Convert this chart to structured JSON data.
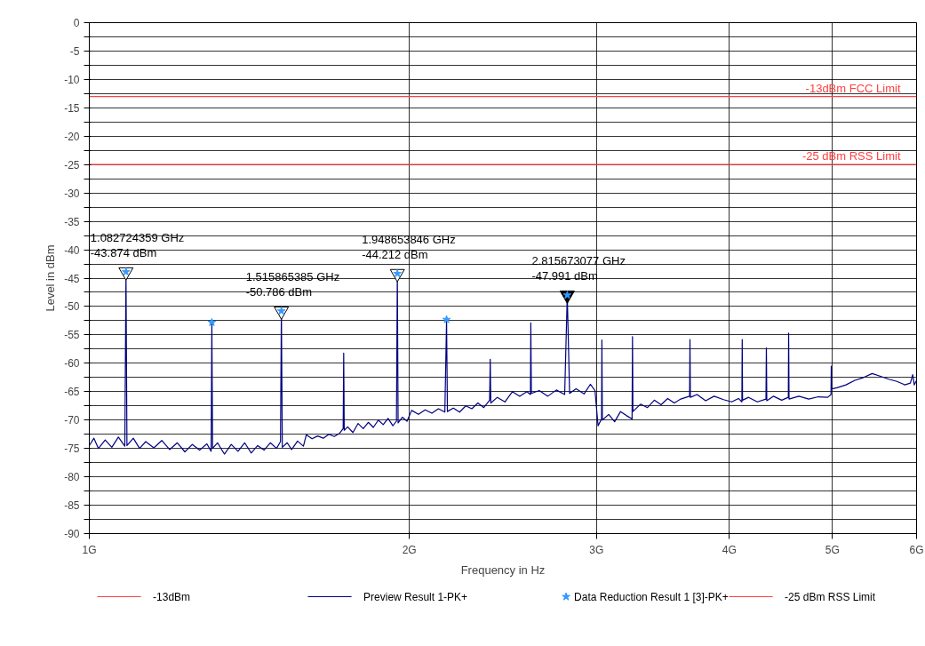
{
  "chart_data": {
    "type": "line",
    "xlabel": "Frequency in Hz",
    "ylabel": "Level in dBm",
    "log": "x",
    "grid": true,
    "legend": "bottom",
    "xlim": [
      1,
      6
    ],
    "ylim": [
      -90,
      0
    ],
    "xticks": [
      {
        "value": 1,
        "label": "1G"
      },
      {
        "value": 2,
        "label": "2G"
      },
      {
        "value": 3,
        "label": "3G"
      },
      {
        "value": 4,
        "label": "4G"
      },
      {
        "value": 5,
        "label": "5G"
      },
      {
        "value": 6,
        "label": "6G"
      }
    ],
    "yticks": [
      0,
      {
        "value": -2.5,
        "label": null
      },
      -5,
      {
        "value": -7.5,
        "label": null
      },
      -10,
      {
        "value": -12.5,
        "label": null
      },
      -15,
      {
        "value": -17.5,
        "label": null
      },
      -20,
      {
        "value": -22.5,
        "label": null
      },
      -25,
      {
        "value": -27.5,
        "label": null
      },
      -30,
      {
        "value": -32.5,
        "label": null
      },
      -35,
      {
        "value": -37.5,
        "label": null
      },
      -40,
      {
        "value": -42.5,
        "label": null
      },
      -45,
      {
        "value": -47.5,
        "label": null
      },
      -50,
      {
        "value": -52.5,
        "label": null
      },
      -55,
      {
        "value": -57.5,
        "label": null
      },
      -60,
      {
        "value": -62.5,
        "label": null
      },
      -65,
      {
        "value": -67.5,
        "label": null
      },
      -70,
      {
        "value": -72.5,
        "label": null
      },
      -75,
      {
        "value": -77.5,
        "label": null
      },
      -80,
      {
        "value": -82.5,
        "label": null
      },
      -85,
      {
        "value": -87.5,
        "label": null
      },
      -90
    ],
    "series": [
      {
        "name": "-13dBm",
        "type": "line",
        "color": "#ff4040",
        "x": [
          1,
          6
        ],
        "values": [
          -13,
          -13
        ]
      },
      {
        "name": "Preview Result 1-PK+",
        "color": "#000080",
        "x": [
          1.0,
          1.01,
          1.02,
          1.035,
          1.05,
          1.065,
          1.08,
          1.0827,
          1.085,
          1.1,
          1.115,
          1.13,
          1.15,
          1.17,
          1.19,
          1.21,
          1.23,
          1.25,
          1.27,
          1.29,
          1.302,
          1.304,
          1.306,
          1.32,
          1.34,
          1.36,
          1.38,
          1.4,
          1.42,
          1.44,
          1.46,
          1.48,
          1.5,
          1.513,
          1.5159,
          1.519,
          1.535,
          1.55,
          1.57,
          1.59,
          1.6,
          1.62,
          1.64,
          1.66,
          1.68,
          1.7,
          1.72,
          1.733,
          1.735,
          1.737,
          1.75,
          1.77,
          1.79,
          1.81,
          1.83,
          1.85,
          1.87,
          1.89,
          1.91,
          1.93,
          1.945,
          1.9487,
          1.952,
          1.97,
          1.99,
          2.01,
          2.04,
          2.07,
          2.1,
          2.13,
          2.16,
          2.168,
          2.172,
          2.2,
          2.23,
          2.26,
          2.29,
          2.32,
          2.35,
          2.38,
          2.383,
          2.386,
          2.42,
          2.46,
          2.5,
          2.54,
          2.58,
          2.6,
          2.602,
          2.605,
          2.65,
          2.7,
          2.75,
          2.8,
          2.8157,
          2.83,
          2.87,
          2.92,
          2.96,
          2.99,
          3.01,
          3.033,
          3.035,
          3.038,
          3.08,
          3.12,
          3.16,
          3.2,
          3.24,
          3.243,
          3.246,
          3.3,
          3.35,
          3.4,
          3.45,
          3.5,
          3.55,
          3.6,
          3.67,
          3.673,
          3.676,
          3.73,
          3.8,
          3.87,
          3.95,
          4.02,
          4.08,
          4.11,
          4.113,
          4.116,
          4.17,
          4.25,
          4.33,
          4.334,
          4.338,
          4.4,
          4.48,
          4.545,
          4.548,
          4.552,
          4.65,
          4.75,
          4.85,
          4.95,
          4.985,
          4.988,
          4.992,
          5.05,
          5.15,
          5.25,
          5.35,
          5.45,
          5.55,
          5.65,
          5.75,
          5.85,
          5.92,
          5.95,
          5.97,
          6.0
        ],
        "values": [
          -74.5,
          -73.2,
          -75.0,
          -73.5,
          -74.8,
          -73.0,
          -74.6,
          -43.9,
          -74.5,
          -73.2,
          -75.0,
          -73.8,
          -74.9,
          -73.6,
          -75.2,
          -74.0,
          -75.6,
          -74.3,
          -75.3,
          -74.2,
          -75.5,
          -52.8,
          -75.0,
          -74.0,
          -76.0,
          -74.3,
          -75.5,
          -74.0,
          -75.8,
          -74.5,
          -75.3,
          -74.0,
          -75.0,
          -73.8,
          -50.8,
          -74.8,
          -74.0,
          -75.2,
          -73.7,
          -74.6,
          -72.6,
          -73.3,
          -72.8,
          -73.2,
          -72.5,
          -72.9,
          -72.3,
          -71.5,
          -58.2,
          -71.8,
          -71.2,
          -72.2,
          -70.6,
          -71.5,
          -70.4,
          -71.3,
          -70.0,
          -70.8,
          -69.7,
          -71.0,
          -70.2,
          -44.2,
          -70.5,
          -69.5,
          -70.2,
          -68.3,
          -69.0,
          -68.2,
          -68.8,
          -68.0,
          -68.6,
          -52.3,
          -68.5,
          -67.9,
          -68.6,
          -67.5,
          -68.0,
          -67.0,
          -67.8,
          -66.5,
          -59.3,
          -67.0,
          -66.0,
          -66.8,
          -65.0,
          -65.8,
          -65.0,
          -65.5,
          -52.9,
          -65.3,
          -64.8,
          -65.8,
          -64.7,
          -65.5,
          -48.0,
          -65.3,
          -64.5,
          -65.4,
          -63.7,
          -64.8,
          -71.0,
          -69.8,
          -55.9,
          -70.0,
          -69.0,
          -70.3,
          -68.5,
          -69.2,
          -69.8,
          -55.3,
          -68.5,
          -67.2,
          -67.8,
          -66.5,
          -67.3,
          -66.2,
          -67.0,
          -66.3,
          -65.8,
          -55.8,
          -66.0,
          -65.5,
          -66.6,
          -65.8,
          -66.4,
          -66.8,
          -66.2,
          -66.8,
          -55.8,
          -66.5,
          -66.0,
          -66.8,
          -66.3,
          -57.3,
          -66.6,
          -65.8,
          -66.5,
          -66.0,
          -54.7,
          -66.3,
          -65.8,
          -66.3,
          -65.9,
          -66.0,
          -65.5,
          -60.5,
          -64.5,
          -64.3,
          -63.8,
          -63.0,
          -62.5,
          -61.8,
          -62.3,
          -62.8,
          -63.2,
          -63.8,
          -63.5,
          -62.0,
          -63.8,
          -63.0
        ]
      },
      {
        "type": "scatter",
        "marker": "triangle",
        "color": "#000000",
        "colors": [
          "#ffffff",
          "#ffffff",
          "#ffffff",
          "#000000"
        ],
        "x": [
          1.0827,
          1.5159,
          1.9487,
          2.8157
        ],
        "values": [
          -43.9,
          -50.8,
          -44.2,
          -48.0
        ]
      },
      {
        "name": "Data Reduction Result 1 [3]-PK+",
        "type": "scatter",
        "marker": "star",
        "color": "#3399ff",
        "x": [
          1.0827,
          1.304,
          1.5159,
          1.9487,
          2.168,
          2.8157
        ],
        "values": [
          -43.9,
          -52.8,
          -50.8,
          -44.2,
          -52.3,
          -48.0
        ]
      },
      {
        "name": "-25 dBm RSS Limit",
        "type": "line",
        "color": "#ff4040",
        "x": [
          1,
          6
        ],
        "values": [
          -25,
          -25
        ]
      }
    ],
    "annotations": [
      {
        "text": "-13dBm FCC Limit",
        "x": 6,
        "y": -13
      },
      {
        "text": "-25 dBm RSS Limit",
        "x": 6,
        "y": -25
      },
      {
        "text": "1.082724359 GHz\n-43.874 dBm",
        "x": 1.0827,
        "y": -43.9
      },
      {
        "text": "1.515865385 GHz\n-50.786 dBm",
        "x": 1.5159,
        "y": -50.8
      },
      {
        "text": "1.948653846 GHz\n-44.212 dBm",
        "x": 1.9487,
        "y": -44.2
      },
      {
        "text": "2.815673077 GHz\n-47.991 dBm",
        "x": 2.8157,
        "y": -48.0
      }
    ]
  }
}
